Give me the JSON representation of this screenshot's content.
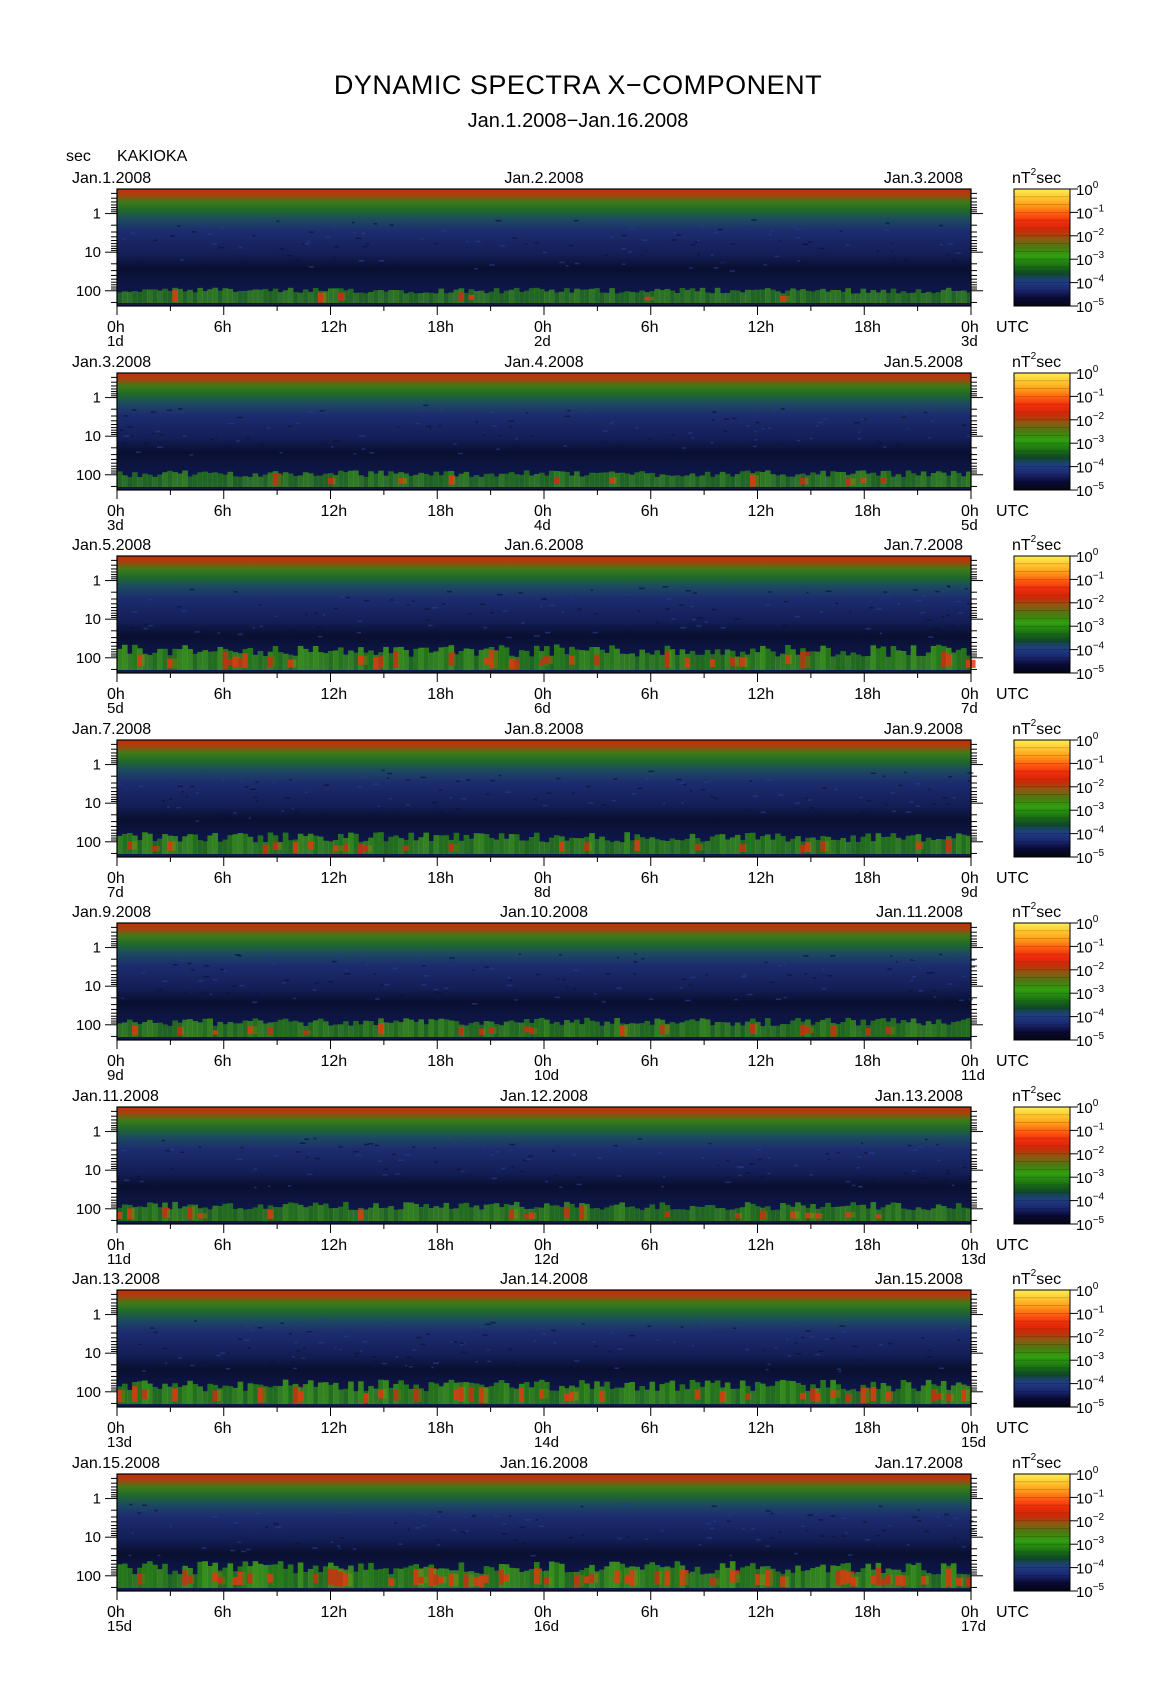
{
  "title": "DYNAMIC SPECTRA X−COMPONENT",
  "subtitle": "Jan.1.2008−Jan.16.2008",
  "y_units": "sec",
  "station": "KAKIOKA",
  "colorbar_units_base": "nT",
  "colorbar_units_exp": "2",
  "colorbar_units_tail": "sec",
  "utc_label": "UTC",
  "colorscale": {
    "base": "10",
    "exponents": [
      "0",
      "−1",
      "−2",
      "−3",
      "−4",
      "−5"
    ],
    "colors": [
      "#050510",
      "#0a0a38",
      "#1a2a72",
      "#1f3e80",
      "#0f4d20",
      "#1e7a12",
      "#2fa010",
      "#4a7a10",
      "#8a5a10",
      "#cc2a08",
      "#ee2a0a",
      "#ff5a10",
      "#ff9a18",
      "#ffc830",
      "#ffee55"
    ]
  },
  "chart_data": {
    "type": "heatmap",
    "description_free": true,
    "ylabel": "sec",
    "y_ticks": [
      "1",
      "10",
      "100"
    ],
    "x_tick_labels": [
      "0h",
      "6h",
      "12h",
      "18h",
      "0h",
      "6h",
      "12h",
      "18h",
      "0h"
    ],
    "panels": [
      {
        "left_date": "Jan.1.2008",
        "mid_date": "Jan.2.2008",
        "right_date": "Jan.3.2008",
        "day_labels": [
          "1d",
          "2d",
          "3d"
        ],
        "activity": 0.35,
        "red_intensity": 0.1
      },
      {
        "left_date": "Jan.3.2008",
        "mid_date": "Jan.4.2008",
        "right_date": "Jan.5.2008",
        "day_labels": [
          "3d",
          "4d",
          "5d"
        ],
        "activity": 0.4,
        "red_intensity": 0.2
      },
      {
        "left_date": "Jan.5.2008",
        "mid_date": "Jan.6.2008",
        "right_date": "Jan.7.2008",
        "day_labels": [
          "5d",
          "6d",
          "7d"
        ],
        "activity": 0.75,
        "red_intensity": 0.5
      },
      {
        "left_date": "Jan.7.2008",
        "mid_date": "Jan.8.2008",
        "right_date": "Jan.9.2008",
        "day_labels": [
          "7d",
          "8d",
          "9d"
        ],
        "activity": 0.6,
        "red_intensity": 0.25
      },
      {
        "left_date": "Jan.9.2008",
        "mid_date": "Jan.10.2008",
        "right_date": "Jan.11.2008",
        "day_labels": [
          "9d",
          "10d",
          "11d"
        ],
        "activity": 0.5,
        "red_intensity": 0.2
      },
      {
        "left_date": "Jan.11.2008",
        "mid_date": "Jan.12.2008",
        "right_date": "Jan.13.2008",
        "day_labels": [
          "11d",
          "12d",
          "13d"
        ],
        "activity": 0.5,
        "red_intensity": 0.3
      },
      {
        "left_date": "Jan.13.2008",
        "mid_date": "Jan.14.2008",
        "right_date": "Jan.15.2008",
        "day_labels": [
          "13d",
          "14d",
          "15d"
        ],
        "activity": 0.7,
        "red_intensity": 0.6
      },
      {
        "left_date": "Jan.15.2008",
        "mid_date": "Jan.16.2008",
        "right_date": "Jan.17.2008",
        "day_labels": [
          "15d",
          "16d",
          "17d"
        ],
        "activity": 0.8,
        "red_intensity": 0.75
      }
    ]
  }
}
